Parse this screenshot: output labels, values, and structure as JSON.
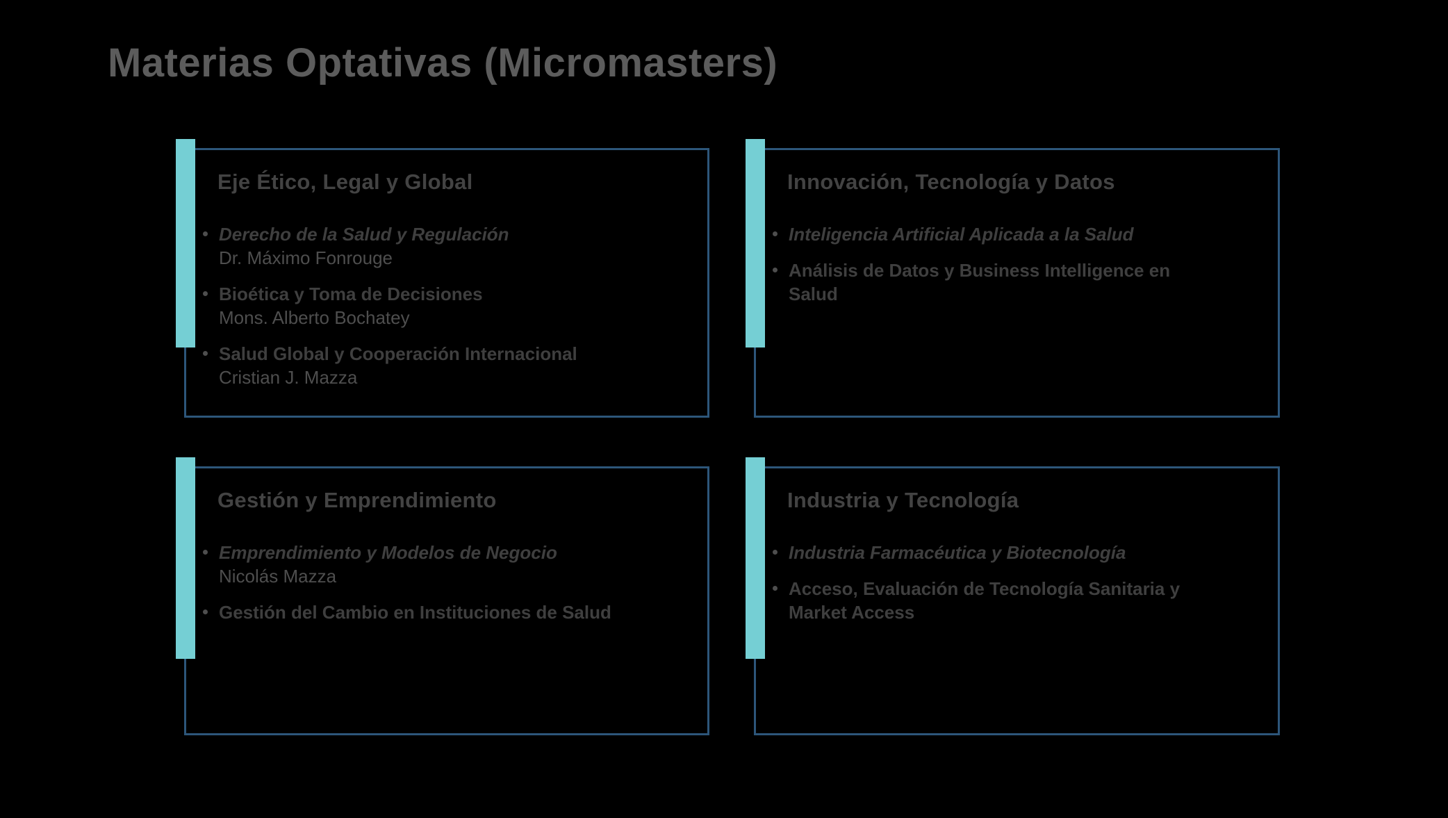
{
  "page": {
    "title": "Materias Optativas (Micromasters)"
  },
  "colors": {
    "background": "#000000",
    "accent_teal": "#75cfd4",
    "card_border": "#2d567a",
    "title_text": "#5c5c5c",
    "card_title_text": "#434343",
    "course_text": "#3f3f3f",
    "person_text": "#4e4e4e"
  },
  "icons": {
    "bullet": "dot"
  },
  "cards": [
    {
      "title": "Eje Ético, Legal y Global",
      "items": [
        {
          "name": "Derecho de la Salud y Regulación",
          "italic": true,
          "person": "Dr. Máximo Fonrouge"
        },
        {
          "name": "Bioética y Toma de Decisiones",
          "italic": false,
          "person": "Mons. Alberto Bochatey"
        },
        {
          "name": "Salud Global y Cooperación Internacional",
          "italic": false,
          "person": "Cristian J. Mazza"
        }
      ]
    },
    {
      "title": "Innovación, Tecnología y Datos",
      "items": [
        {
          "name": "Inteligencia Artificial Aplicada a la Salud",
          "italic": true
        },
        {
          "name": "Análisis de Datos y Business Intelligence en Salud",
          "italic": false
        }
      ]
    },
    {
      "title": "Gestión y Emprendimiento",
      "items": [
        {
          "name": "Emprendimiento y Modelos de Negocio",
          "italic": true,
          "person": "Nicolás Mazza"
        },
        {
          "name": "Gestión del Cambio en Instituciones de Salud",
          "italic": false
        }
      ]
    },
    {
      "title": "Industria y Tecnología",
      "items": [
        {
          "name": "Industria Farmacéutica y Biotecnología",
          "italic": true
        },
        {
          "name": "Acceso, Evaluación de Tecnología Sanitaria y Market Access",
          "italic": false
        }
      ]
    }
  ]
}
